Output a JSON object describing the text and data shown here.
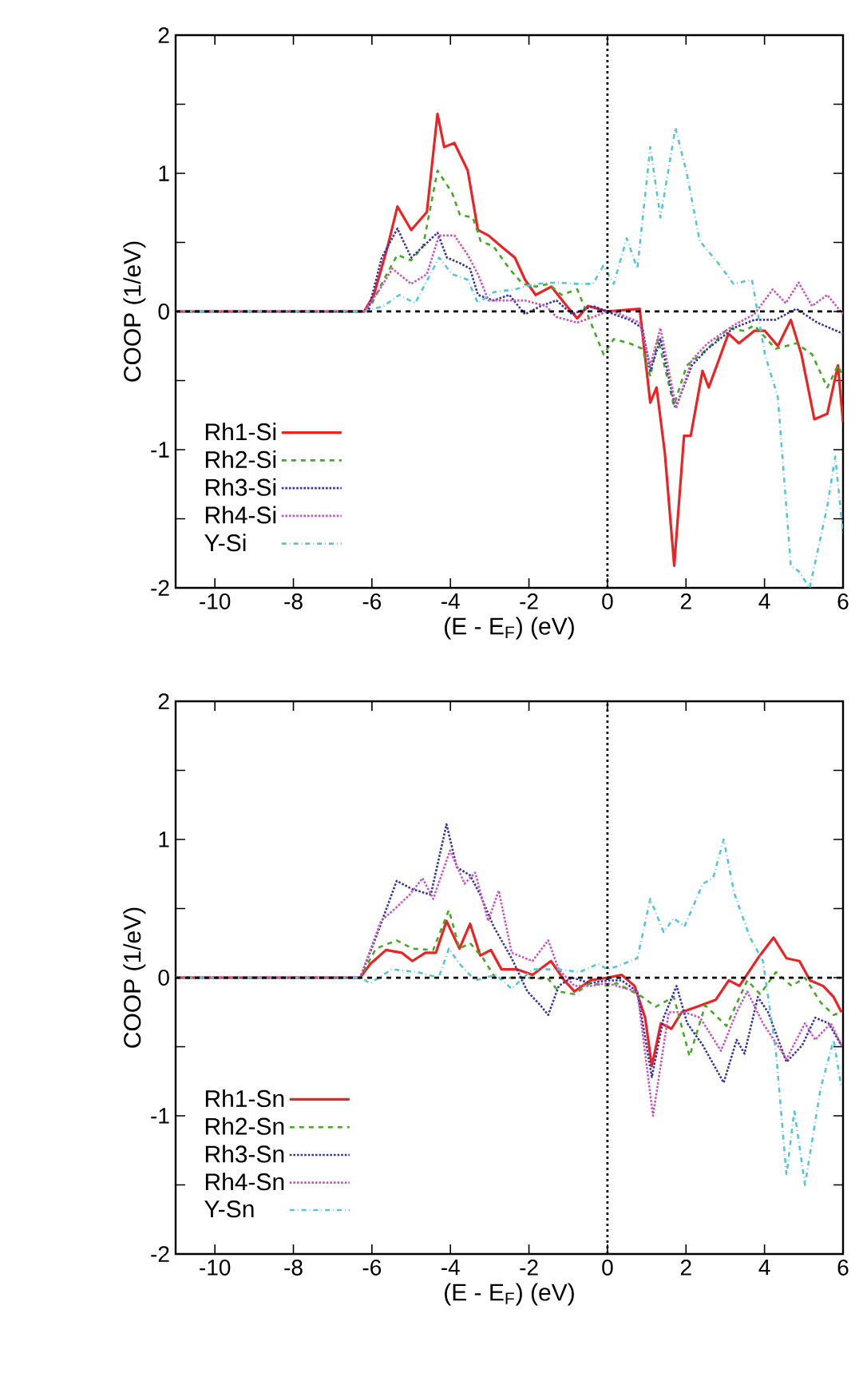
{
  "chart_data": [
    {
      "type": "line",
      "xlabel": "(E - E$_{F}$) (eV)",
      "ylabel": "COOP (1/eV)",
      "xlim": [
        -11,
        6
      ],
      "ylim": [
        -2,
        2
      ],
      "xticks": [
        -10,
        -8,
        -6,
        -4,
        -2,
        0,
        2,
        4,
        6
      ],
      "yticks": [
        -2,
        {
          "value": -1.5,
          "label": null
        },
        -1,
        {
          "value": -0.5,
          "label": null
        },
        0,
        {
          "value": 0.5,
          "label": null
        },
        1,
        {
          "value": 1.5,
          "label": null
        },
        2
      ],
      "legend": "bottom left",
      "ref_lines": [
        {
          "axis": "y",
          "value": 0,
          "color": "#000000",
          "line_style": "dashed"
        },
        {
          "axis": "x",
          "value": 0,
          "color": "#000000",
          "line_style": "dotted"
        }
      ],
      "series": [
        {
          "name": "Rh1-Si",
          "color": "#ee2222",
          "line_style": "solid",
          "x": [
            -11,
            -6.2,
            -5.95,
            -5.6,
            -5.35,
            -5.0,
            -4.6,
            -4.33,
            -4.16,
            -3.9,
            -3.56,
            -3.3,
            -3.03,
            -2.7,
            -2.36,
            -2.1,
            -1.83,
            -1.43,
            -1.04,
            -0.77,
            -0.5,
            0,
            0.82,
            1.09,
            1.25,
            1.46,
            1.7,
            1.95,
            2.12,
            2.42,
            2.58,
            3.08,
            3.35,
            3.74,
            4.01,
            4.34,
            4.67,
            4.94,
            5.27,
            5.6,
            5.87,
            6
          ],
          "values": [
            0,
            0,
            0.12,
            0.47,
            0.76,
            0.59,
            0.72,
            1.43,
            1.19,
            1.22,
            1.02,
            0.59,
            0.55,
            0.47,
            0.39,
            0.23,
            0.12,
            0.18,
            0.04,
            -0.05,
            0.04,
            0,
            0.02,
            -0.66,
            -0.55,
            -1.02,
            -1.84,
            -0.9,
            -0.9,
            -0.43,
            -0.55,
            -0.16,
            -0.23,
            -0.14,
            -0.14,
            -0.25,
            -0.06,
            -0.31,
            -0.78,
            -0.74,
            -0.39,
            -0.8
          ]
        },
        {
          "name": "Rh2-Si",
          "color": "#44aa22",
          "line_style": "dashed",
          "x": [
            -11,
            -6.1,
            -5.7,
            -5.35,
            -5.0,
            -4.7,
            -4.33,
            -3.96,
            -3.76,
            -3.43,
            -3.23,
            -2.9,
            -2.5,
            -2.16,
            -1.83,
            -1.5,
            -1.17,
            -0.77,
            -0.37,
            -0.1,
            0.16,
            0.56,
            0.89,
            1.09,
            1.29,
            1.69,
            2.02,
            2.55,
            3.08,
            3.48,
            3.74,
            4.28,
            4.81,
            5.21,
            5.6,
            5.87,
            6
          ],
          "values": [
            0,
            0,
            0.23,
            0.41,
            0.37,
            0.47,
            1.02,
            0.86,
            0.7,
            0.68,
            0.51,
            0.47,
            0.31,
            0.2,
            0.18,
            0.2,
            0.12,
            0.16,
            -0.12,
            -0.31,
            -0.2,
            -0.23,
            -0.27,
            -0.47,
            -0.2,
            -0.68,
            -0.39,
            -0.27,
            -0.12,
            -0.14,
            -0.1,
            -0.27,
            -0.23,
            -0.31,
            -0.55,
            -0.39,
            -0.47
          ]
        },
        {
          "name": "Rh3-Si",
          "color": "#3333aa",
          "line_style": "dotted",
          "x": [
            -11,
            -6.1,
            -5.75,
            -5.35,
            -5.0,
            -4.7,
            -4.33,
            -4.09,
            -3.76,
            -3.5,
            -3.3,
            -2.9,
            -2.5,
            -2.1,
            -1.7,
            -1.3,
            -0.9,
            -0.37,
            0,
            0.16,
            0.56,
            0.89,
            1.09,
            1.35,
            1.73,
            2.15,
            2.55,
            3.21,
            3.74,
            4.28,
            4.81,
            5.34,
            6
          ],
          "values": [
            0,
            0,
            0.39,
            0.6,
            0.39,
            0.47,
            0.57,
            0.39,
            0.35,
            0.31,
            0.12,
            0.08,
            0.12,
            -0.02,
            0.04,
            0.08,
            -0.02,
            0.04,
            0,
            -0.02,
            -0.06,
            -0.12,
            -0.43,
            -0.2,
            -0.7,
            -0.39,
            -0.27,
            -0.12,
            -0.06,
            -0.06,
            0.02,
            -0.08,
            -0.16
          ]
        },
        {
          "name": "Rh4-Si",
          "color": "#cc55bb",
          "line_style": "dotted",
          "x": [
            -11,
            -6.2,
            -5.8,
            -5.48,
            -5.0,
            -4.6,
            -4.29,
            -3.9,
            -3.56,
            -3.3,
            -3.03,
            -2.63,
            -2.1,
            -1.57,
            -1.3,
            -0.77,
            -0.37,
            0,
            0.16,
            0.82,
            1.09,
            1.35,
            1.75,
            2.15,
            2.55,
            3.21,
            3.74,
            4.21,
            4.54,
            4.87,
            5.21,
            5.6,
            6
          ],
          "values": [
            0,
            0,
            0.16,
            0.31,
            0.2,
            0.27,
            0.55,
            0.55,
            0.41,
            0.27,
            0.08,
            0.08,
            0.08,
            0.04,
            -0.04,
            -0.08,
            -0.04,
            0,
            0,
            -0.08,
            -0.39,
            -0.12,
            -0.7,
            -0.35,
            -0.23,
            -0.1,
            -0.02,
            0.16,
            0.06,
            0.21,
            0.04,
            0.12,
            -0.02
          ]
        },
        {
          "name": "Y-Si",
          "color": "#55c5dd",
          "line_style": "dashdotted",
          "x": [
            -11,
            -6.2,
            -5.7,
            -5.3,
            -4.9,
            -4.29,
            -3.96,
            -3.56,
            -3.3,
            -2.9,
            -2.36,
            -1.83,
            -1.3,
            -0.77,
            -0.37,
            -0.11,
            0.16,
            0.49,
            0.76,
            1.09,
            1.35,
            1.73,
            2.02,
            2.35,
            2.82,
            3.21,
            3.68,
            4.01,
            4.34,
            4.67,
            4.87,
            5.15,
            5.6,
            5.8,
            6
          ],
          "values": [
            0,
            0,
            0.04,
            0.12,
            0.06,
            0.39,
            0.27,
            0.23,
            0.06,
            0.14,
            0.16,
            0.2,
            0.21,
            0.2,
            0.2,
            0.33,
            0.2,
            0.53,
            0.31,
            1.19,
            0.68,
            1.33,
            1.0,
            0.51,
            0.35,
            0.2,
            0.23,
            -0.31,
            -0.62,
            -1.84,
            -1.88,
            -2.0,
            -1.41,
            -1.05,
            -1.6
          ]
        }
      ]
    },
    {
      "type": "line",
      "xlabel": "(E - E$_{F}$) (eV)",
      "ylabel": "COOP (1/eV)",
      "xlim": [
        -11,
        6
      ],
      "ylim": [
        -2,
        2
      ],
      "xticks": [
        -10,
        -8,
        -6,
        -4,
        -2,
        0,
        2,
        4,
        6
      ],
      "yticks": [
        -2,
        {
          "value": -1.5,
          "label": null
        },
        -1,
        {
          "value": -0.5,
          "label": null
        },
        0,
        {
          "value": 0.5,
          "label": null
        },
        1,
        {
          "value": 1.5,
          "label": null
        },
        2
      ],
      "legend": "bottom left",
      "ref_lines": [
        {
          "axis": "y",
          "value": 0,
          "color": "#000000",
          "line_style": "dashed"
        },
        {
          "axis": "x",
          "value": 0,
          "color": "#000000",
          "line_style": "dotted"
        }
      ],
      "series": [
        {
          "name": "Rh1-Sn",
          "color": "#ee2222",
          "line_style": "solid",
          "x": [
            -11,
            -6.3,
            -6.04,
            -5.64,
            -5.24,
            -4.97,
            -4.64,
            -4.37,
            -4.1,
            -3.77,
            -3.5,
            -3.24,
            -2.97,
            -2.7,
            -2.31,
            -1.91,
            -1.44,
            -1.1,
            -0.84,
            -0.44,
            0,
            0.36,
            0.69,
            0.96,
            1.13,
            1.36,
            1.63,
            1.89,
            2.29,
            2.76,
            3.09,
            3.36,
            3.83,
            4.23,
            4.56,
            4.89,
            5.16,
            5.49,
            5.76,
            5.96
          ],
          "values": [
            0,
            0,
            0.1,
            0.2,
            0.18,
            0.12,
            0.18,
            0.18,
            0.41,
            0.21,
            0.39,
            0.16,
            0.2,
            0.06,
            0.06,
            0.02,
            0.12,
            -0.02,
            -0.1,
            -0.02,
            0,
            0.02,
            -0.06,
            -0.29,
            -0.64,
            -0.33,
            -0.37,
            -0.25,
            -0.21,
            -0.16,
            -0.02,
            -0.06,
            0.14,
            0.29,
            0.14,
            0.12,
            -0.02,
            -0.06,
            -0.14,
            -0.25
          ]
        },
        {
          "name": "Rh2-Sn",
          "color": "#44aa22",
          "line_style": "dashed",
          "x": [
            -11,
            -6.3,
            -5.9,
            -5.37,
            -4.97,
            -4.44,
            -4.04,
            -3.77,
            -3.5,
            -3.17,
            -2.84,
            -2.44,
            -2.04,
            -1.51,
            -1.24,
            -0.84,
            -0.44,
            0,
            0.23,
            0.63,
            0.89,
            1.23,
            1.69,
            2.09,
            2.49,
            3.03,
            3.56,
            3.89,
            4.29,
            4.69,
            5.03,
            5.43,
            5.76,
            5.96
          ],
          "values": [
            0,
            0,
            0.21,
            0.27,
            0.21,
            0.2,
            0.49,
            0.21,
            0.25,
            0.14,
            -0.01,
            0,
            0,
            -0.01,
            -0.1,
            -0.12,
            -0.04,
            -0.06,
            -0.04,
            -0.1,
            -0.14,
            -0.21,
            -0.14,
            -0.57,
            -0.2,
            -0.35,
            -0.02,
            -0.12,
            0.04,
            -0.06,
            0,
            -0.18,
            -0.27,
            -0.25
          ]
        },
        {
          "name": "Rh3-Sn",
          "color": "#3333aa",
          "line_style": "dotted",
          "x": [
            -11,
            -6.3,
            -5.9,
            -5.37,
            -4.97,
            -4.5,
            -4.1,
            -3.84,
            -3.5,
            -3.24,
            -2.9,
            -2.44,
            -2.04,
            -1.71,
            -1.51,
            -1.24,
            -0.91,
            -0.44,
            0,
            0.36,
            0.76,
            1.13,
            1.43,
            1.76,
            2.03,
            2.43,
            2.96,
            3.29,
            3.49,
            3.83,
            4.09,
            4.56,
            4.96,
            5.29,
            5.63,
            5.96
          ],
          "values": [
            0,
            0,
            0.29,
            0.7,
            0.64,
            0.6,
            1.11,
            0.8,
            0.74,
            0.6,
            0.37,
            0.14,
            -0.1,
            -0.2,
            -0.27,
            -0.06,
            0,
            -0.04,
            -0.02,
            -0.02,
            -0.1,
            -0.72,
            -0.29,
            -0.06,
            -0.33,
            -0.49,
            -0.76,
            -0.45,
            -0.55,
            -0.14,
            -0.25,
            -0.61,
            -0.49,
            -0.29,
            -0.33,
            -0.49
          ]
        },
        {
          "name": "Rh4-Sn",
          "color": "#cc55bb",
          "line_style": "dotted",
          "x": [
            -11,
            -6.3,
            -5.77,
            -5.37,
            -5.04,
            -4.71,
            -4.44,
            -4.01,
            -3.64,
            -3.37,
            -3.04,
            -2.77,
            -2.44,
            -1.91,
            -1.51,
            -1.24,
            -0.84,
            -0.44,
            0,
            0.23,
            0.76,
            1.16,
            1.56,
            1.96,
            2.36,
            2.89,
            3.29,
            3.56,
            3.96,
            4.56,
            5.03,
            5.29,
            5.69,
            5.96
          ],
          "values": [
            0,
            0,
            0.41,
            0.51,
            0.6,
            0.72,
            0.57,
            0.92,
            0.68,
            0.76,
            0.41,
            0.63,
            0.18,
            0.12,
            0.27,
            0.06,
            -0.06,
            -0.06,
            -0.04,
            -0.06,
            -0.1,
            -1.0,
            -0.25,
            -0.25,
            -0.29,
            -0.53,
            -0.25,
            -0.1,
            -0.33,
            -0.59,
            -0.33,
            -0.45,
            -0.33,
            -0.49
          ]
        },
        {
          "name": "Y-Sn",
          "color": "#55c5dd",
          "line_style": "dashdotted",
          "x": [
            -11,
            -6.3,
            -6.04,
            -5.5,
            -4.84,
            -4.3,
            -4.04,
            -3.77,
            -3.37,
            -2.84,
            -2.44,
            -1.91,
            -1.24,
            -0.71,
            -0.24,
            0,
            0.23,
            0.76,
            1.09,
            1.43,
            1.69,
            1.96,
            2.43,
            2.69,
            2.96,
            3.23,
            3.63,
            3.96,
            4.29,
            4.56,
            4.76,
            5.03,
            5.43,
            5.76,
            5.96
          ],
          "values": [
            0,
            0,
            -0.04,
            0.06,
            0.04,
            0,
            0.21,
            0.1,
            -0.02,
            0.02,
            -0.08,
            0.06,
            0.06,
            0.04,
            0.1,
            0.06,
            0.08,
            0.14,
            0.57,
            0.33,
            0.43,
            0.37,
            0.68,
            0.72,
            1.0,
            0.61,
            0.29,
            0.12,
            -0.53,
            -1.43,
            -0.96,
            -1.5,
            -0.8,
            -0.45,
            -0.8
          ]
        }
      ]
    }
  ]
}
